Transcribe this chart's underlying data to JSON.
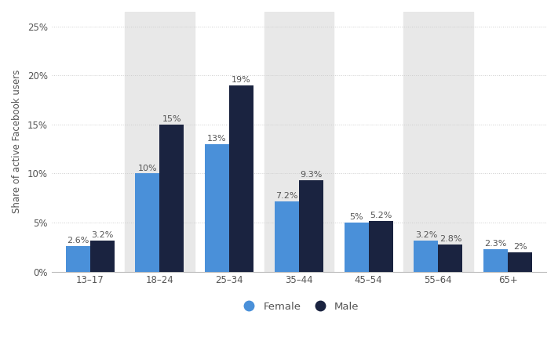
{
  "categories": [
    "13–17",
    "18–24",
    "25–34",
    "35–44",
    "45–54",
    "55–64",
    "65+"
  ],
  "female_values": [
    2.6,
    10.0,
    13.0,
    7.2,
    5.0,
    3.2,
    2.3
  ],
  "male_values": [
    3.2,
    15.0,
    19.0,
    9.3,
    5.2,
    2.8,
    2.0
  ],
  "female_labels": [
    "2.6%",
    "10%",
    "13%",
    "7.2%",
    "5%",
    "3.2%",
    "2.3%"
  ],
  "male_labels": [
    "3.2%",
    "15%",
    "19%",
    "9.3%",
    "5.2%",
    "2.8%",
    "2%"
  ],
  "female_color": "#4a90d9",
  "male_color": "#1a2340",
  "ylabel": "Share of active Facebook users",
  "yticks": [
    0,
    5,
    10,
    15,
    20,
    25
  ],
  "ytick_labels": [
    "0%",
    "5%",
    "10%",
    "15%",
    "20%",
    "25%"
  ],
  "legend_female": "Female",
  "legend_male": "Male",
  "background_color": "#ffffff",
  "plot_background_color": "#ffffff",
  "shade_color": "#e8e8e8",
  "shaded_indices": [
    1,
    3,
    5
  ],
  "bar_width": 0.35,
  "label_fontsize": 8.0,
  "axis_fontsize": 8.5,
  "tick_fontsize": 8.5,
  "legend_fontsize": 9.5,
  "grid_color": "#cccccc",
  "text_color": "#555555"
}
